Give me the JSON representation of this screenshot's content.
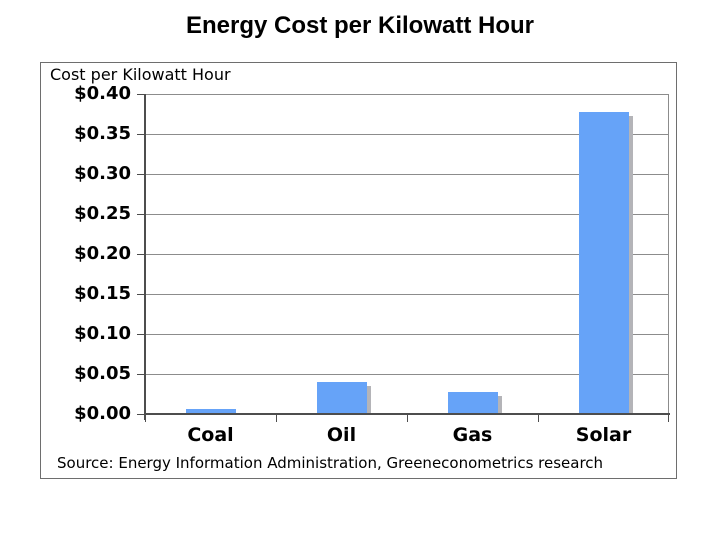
{
  "page": {
    "title": "Energy Cost per Kilowatt Hour"
  },
  "chart_data": {
    "type": "bar",
    "title": "Energy Cost per Kilowatt Hour",
    "inner_axis_title": "Cost per Kilowatt Hour",
    "categories": [
      "Coal",
      "Oil",
      "Gas",
      "Solar"
    ],
    "values": [
      0.006,
      0.04,
      0.027,
      0.378
    ],
    "xlabel": "",
    "ylabel": "Cost per Kilowatt Hour",
    "ylim": [
      0,
      0.4
    ],
    "ytick_step": 0.05,
    "ytick_labels_top_to_bottom": [
      "$0.40",
      "$0.35",
      "$0.30",
      "$0.25",
      "$0.20",
      "$0.15",
      "$0.10",
      "$0.05",
      "$0.00"
    ],
    "source": "Source: Energy Information Administration, Greeneconometrics research",
    "grid": true,
    "legend_position": "none",
    "colors": {
      "bar": "#66a3f8",
      "bar_shadow": "#b4b4b8",
      "gridline": "#8c8c8c",
      "axis": "#4d4d4d",
      "text": "#000000",
      "box_border": "#6e6e6e"
    }
  }
}
